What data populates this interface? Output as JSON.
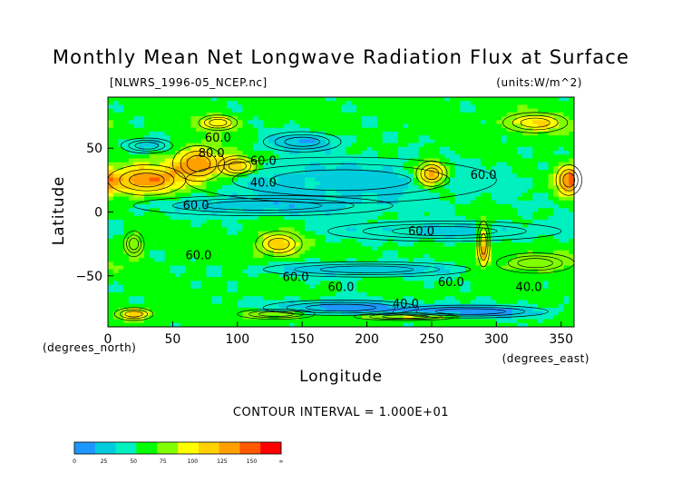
{
  "chart_data": {
    "type": "heatmap",
    "title": "Monthly Mean Net Longwave Radiation Flux at Surface",
    "source_label": "[NLWRS_1996-05_NCEP.nc]",
    "units_label": "(units:W/m^2)",
    "xlabel": "Longitude",
    "ylabel": "Latitude",
    "x_unit_label": "(degrees_east)",
    "y_unit_label": "(degrees_north)",
    "xlim": [
      0,
      360
    ],
    "ylim": [
      -90,
      90
    ],
    "x_ticks": [
      0,
      50,
      100,
      150,
      200,
      250,
      300,
      350
    ],
    "x_tick_labels": [
      "0",
      "50",
      "100",
      "150",
      "200",
      "250",
      "300",
      "350"
    ],
    "y_ticks": [
      50,
      0,
      -50
    ],
    "y_tick_labels": [
      "50",
      "0",
      "−50"
    ],
    "contour_interval_label": "CONTOUR INTERVAL = 1.000E+01",
    "contour_labels": [
      {
        "text": "60.0",
        "lon": 85,
        "lat": 55
      },
      {
        "text": "80.0",
        "lon": 80,
        "lat": 43
      },
      {
        "text": "60.0",
        "lon": 120,
        "lat": 37
      },
      {
        "text": "40.0",
        "lon": 120,
        "lat": 20
      },
      {
        "text": "60.0",
        "lon": 68,
        "lat": 2
      },
      {
        "text": "60.0",
        "lon": 290,
        "lat": 26
      },
      {
        "text": "60.0",
        "lon": 242,
        "lat": -18
      },
      {
        "text": "60.0",
        "lon": 70,
        "lat": -37
      },
      {
        "text": "60.0",
        "lon": 145,
        "lat": -54
      },
      {
        "text": "60.0",
        "lon": 180,
        "lat": -62
      },
      {
        "text": "60.0",
        "lon": 265,
        "lat": -58
      },
      {
        "text": "40.0",
        "lon": 325,
        "lat": -62
      },
      {
        "text": "40.0",
        "lon": 230,
        "lat": -75
      }
    ],
    "color_scale": {
      "ticks": [
        "0",
        "25",
        "50",
        "75",
        "100",
        "125",
        "150",
        "∞"
      ],
      "colors": [
        "#1e96ff",
        "#00ccdd",
        "#00f0c0",
        "#00ff00",
        "#80ff00",
        "#ffff00",
        "#ffd200",
        "#ffa000",
        "#ff5a00",
        "#ff0000"
      ]
    },
    "anomalies": [
      {
        "lon": 30,
        "lat": 25,
        "value": 140,
        "rlon": 30,
        "rlat": 12
      },
      {
        "lon": 70,
        "lat": 38,
        "value": 130,
        "rlon": 20,
        "rlat": 14
      },
      {
        "lon": 100,
        "lat": 36,
        "value": 120,
        "rlon": 15,
        "rlat": 8
      },
      {
        "lon": 85,
        "lat": 70,
        "value": 100,
        "rlon": 15,
        "rlat": 6
      },
      {
        "lon": 250,
        "lat": 30,
        "value": 140,
        "rlon": 12,
        "rlat": 10
      },
      {
        "lon": 356,
        "lat": 25,
        "value": 120,
        "rlon": 10,
        "rlat": 12
      },
      {
        "lon": 330,
        "lat": 70,
        "value": 100,
        "rlon": 25,
        "rlat": 8
      },
      {
        "lon": 290,
        "lat": -25,
        "value": 125,
        "rlon": 5,
        "rlat": 18
      },
      {
        "lon": 132,
        "lat": -25,
        "value": 110,
        "rlon": 18,
        "rlat": 10
      },
      {
        "lon": 20,
        "lat": -25,
        "value": 90,
        "rlon": 8,
        "rlat": 10
      },
      {
        "lon": 330,
        "lat": -40,
        "value": 85,
        "rlon": 30,
        "rlat": 8
      },
      {
        "lon": 180,
        "lat": 25,
        "value": 25,
        "rlon": 120,
        "rlat": 18
      },
      {
        "lon": 120,
        "lat": 5,
        "value": 28,
        "rlon": 100,
        "rlat": 8
      },
      {
        "lon": 260,
        "lat": -15,
        "value": 28,
        "rlon": 90,
        "rlat": 8
      },
      {
        "lon": 200,
        "lat": -45,
        "value": 20,
        "rlon": 80,
        "rlat": 6
      },
      {
        "lon": 180,
        "lat": -75,
        "value": 5,
        "rlon": 60,
        "rlat": 6
      },
      {
        "lon": 280,
        "lat": -78,
        "value": 5,
        "rlon": 60,
        "rlat": 5
      },
      {
        "lon": 150,
        "lat": 55,
        "value": 20,
        "rlon": 30,
        "rlat": 8
      },
      {
        "lon": 30,
        "lat": 52,
        "value": 25,
        "rlon": 20,
        "rlat": 6
      },
      {
        "lon": 230,
        "lat": -82,
        "value": 100,
        "rlon": 40,
        "rlat": 3
      },
      {
        "lon": 20,
        "lat": -80,
        "value": 110,
        "rlon": 15,
        "rlat": 5
      },
      {
        "lon": 130,
        "lat": -80,
        "value": 90,
        "rlon": 30,
        "rlat": 4
      }
    ],
    "background_value": 55
  }
}
